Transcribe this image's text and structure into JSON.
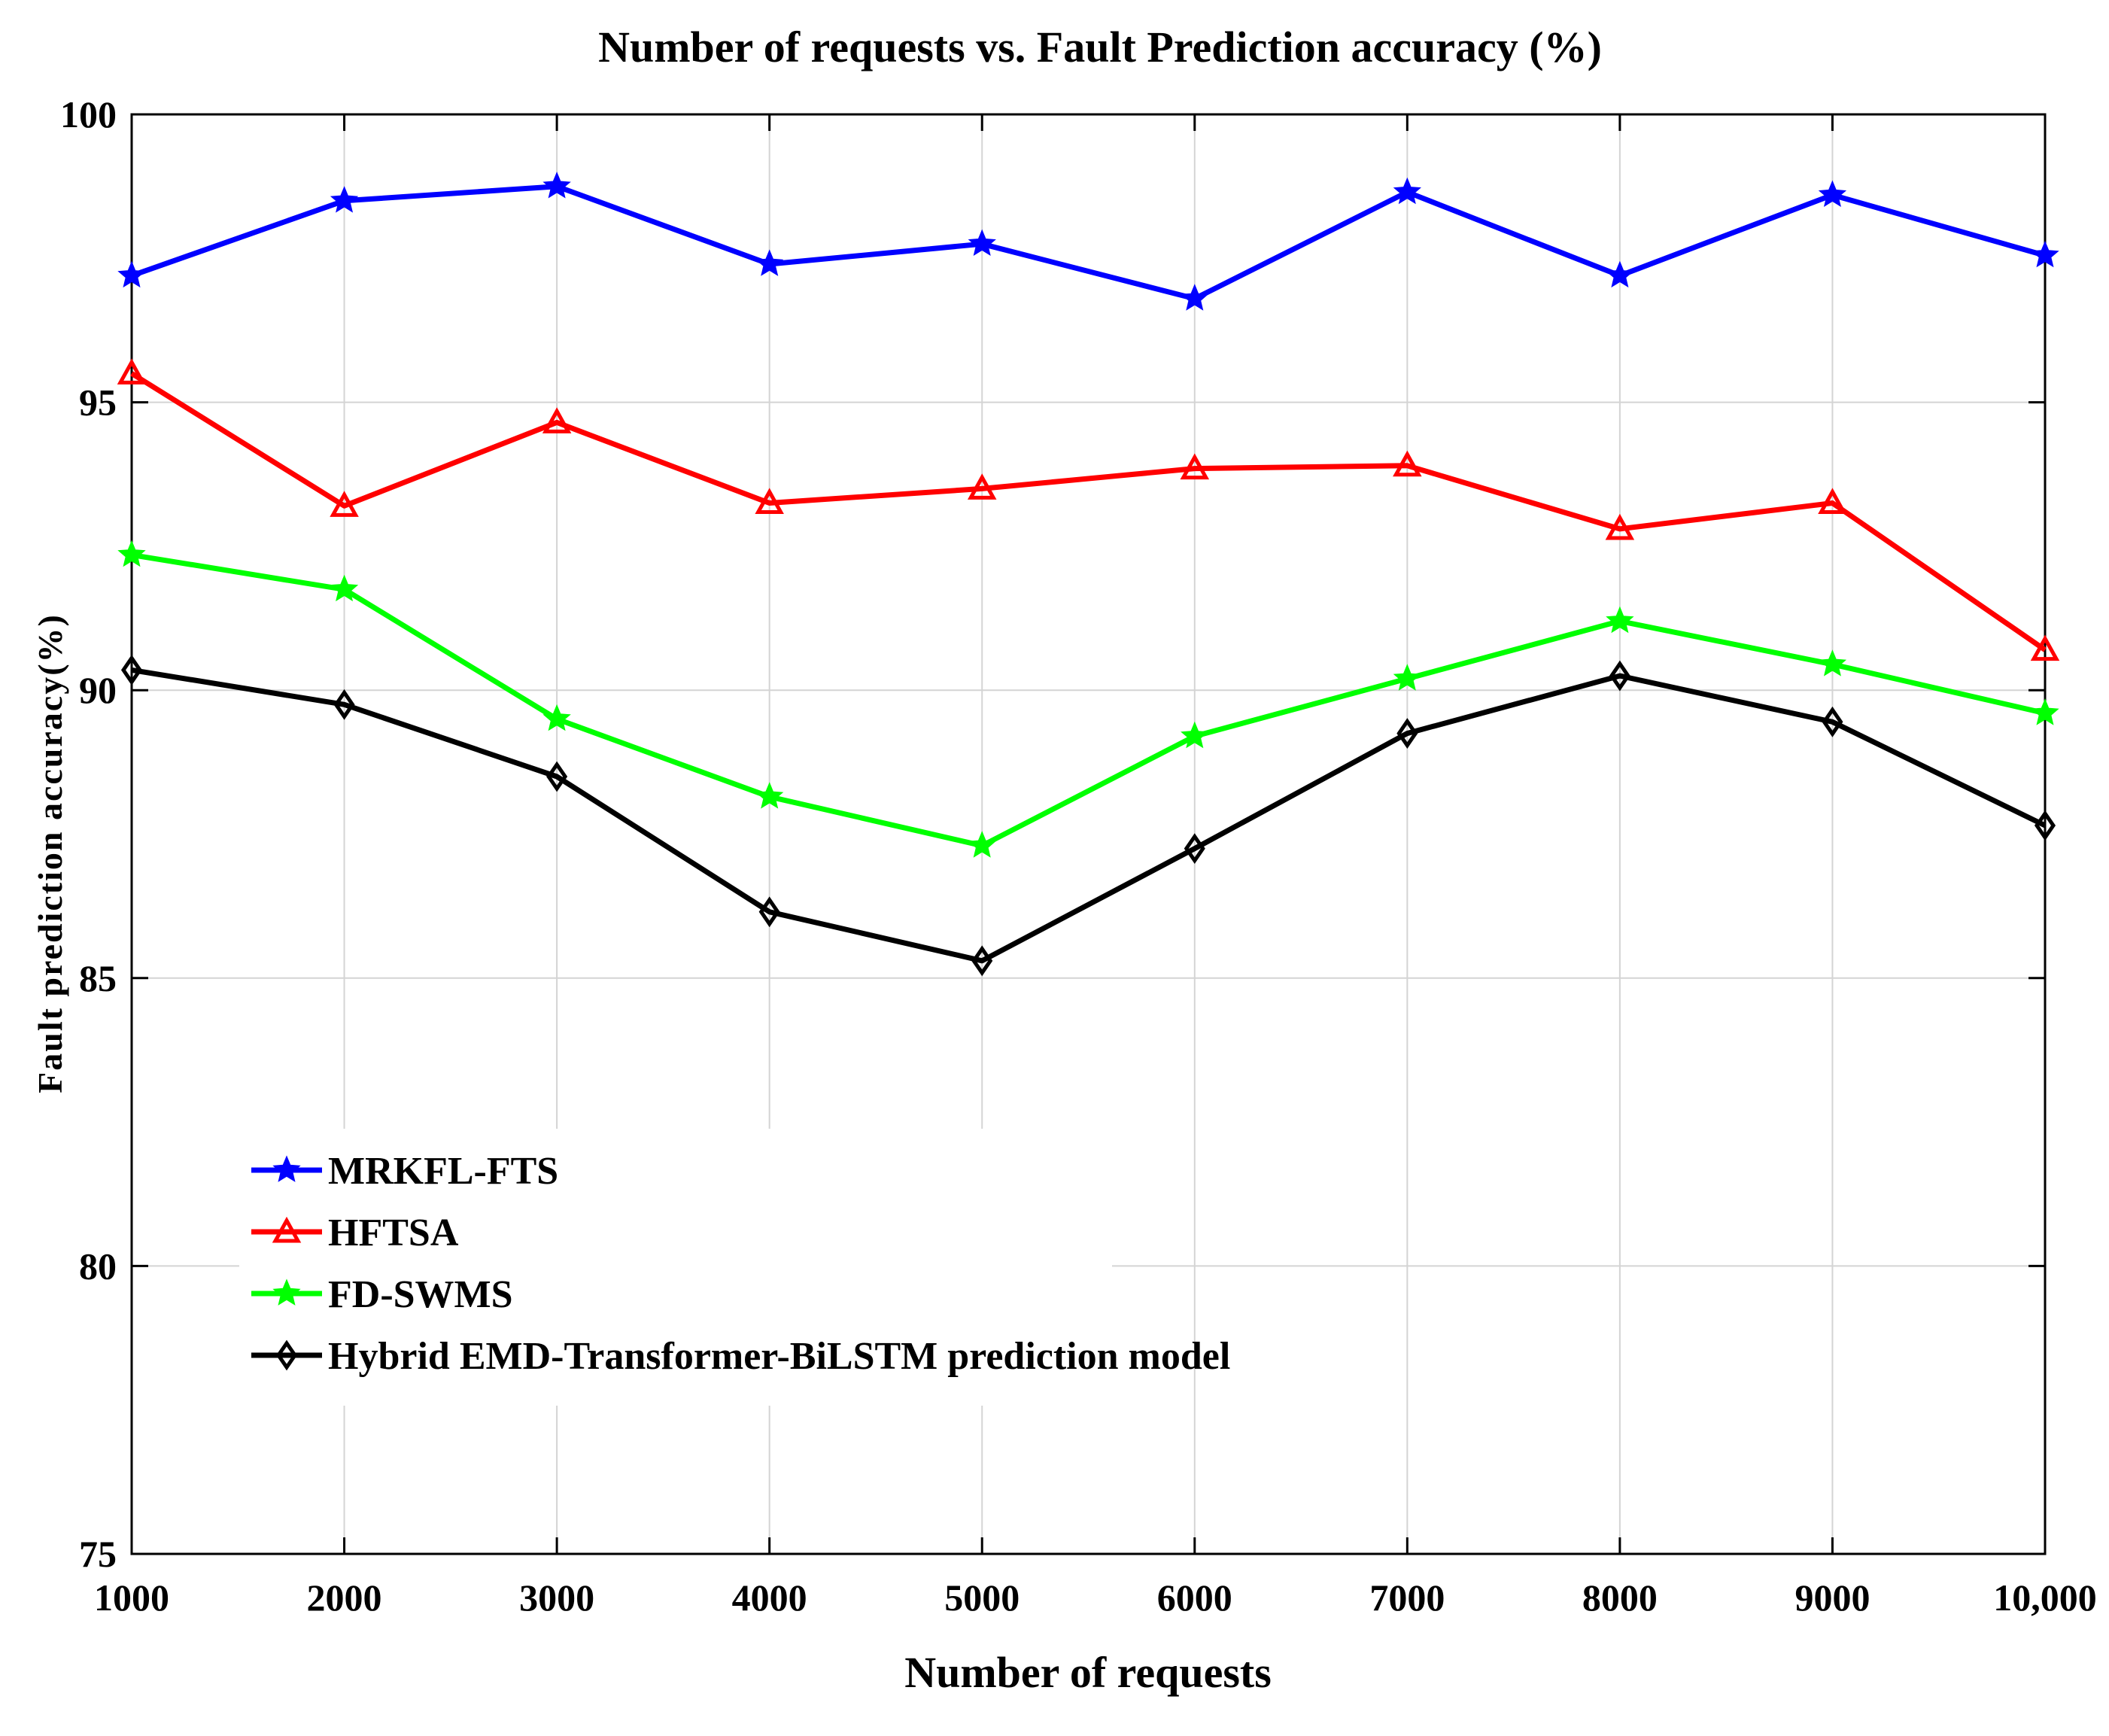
{
  "chart_data": {
    "type": "line",
    "title": "Number of requests vs. Fault Prediction accuracy (%)",
    "xlabel": "Number of requests",
    "ylabel": "Fault prediction accuracy(%)",
    "categories": [
      "1000",
      "2000",
      "3000",
      "4000",
      "5000",
      "6000",
      "7000",
      "8000",
      "9000",
      "10,000"
    ],
    "ylim": [
      75,
      100
    ],
    "yticks": [
      75,
      80,
      85,
      90,
      95,
      100
    ],
    "grid": true,
    "legend_position": "lower-left",
    "series": [
      {
        "name": "MRKFL-FTS",
        "color": "#0000ff",
        "marker": "star",
        "values": [
          97.2,
          98.5,
          98.75,
          97.4,
          97.75,
          96.8,
          98.65,
          97.2,
          98.6,
          97.55
        ]
      },
      {
        "name": "HFTSA",
        "color": "#ff0000",
        "marker": "triangle",
        "values": [
          95.5,
          93.2,
          94.65,
          93.25,
          93.5,
          93.85,
          93.9,
          92.8,
          93.25,
          90.7
        ]
      },
      {
        "name": "FD-SWMS",
        "color": "#00ff00",
        "marker": "star",
        "values": [
          92.35,
          91.75,
          89.5,
          88.15,
          87.3,
          89.2,
          90.2,
          91.2,
          90.45,
          89.6
        ]
      },
      {
        "name": "Hybrid EMD-Transformer-BiLSTM prediction model",
        "color": "#000000",
        "marker": "diamond",
        "values": [
          90.35,
          89.75,
          88.5,
          86.15,
          85.3,
          87.25,
          89.25,
          90.25,
          89.45,
          87.65
        ]
      }
    ]
  }
}
